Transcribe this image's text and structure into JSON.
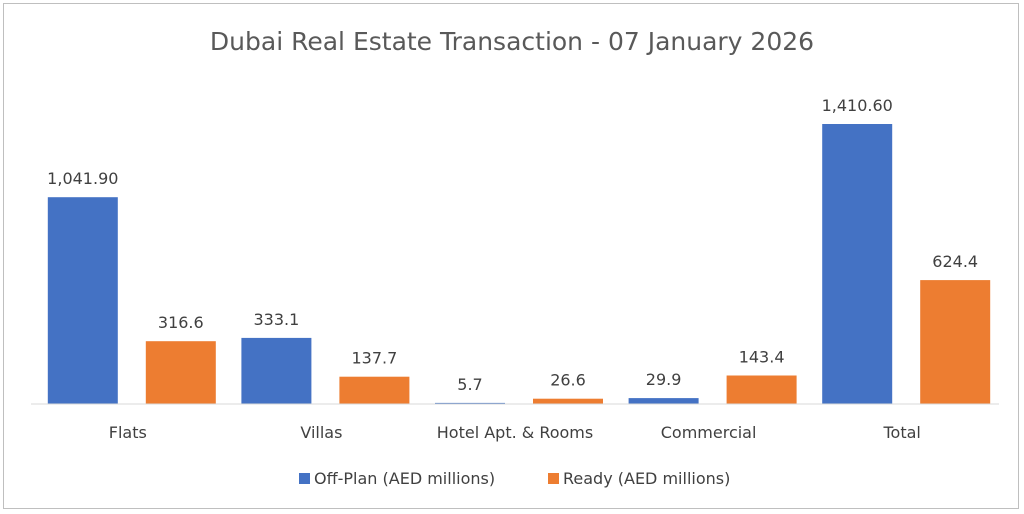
{
  "chart_data": {
    "type": "bar",
    "title": "Dubai Real Estate Transaction - 07 January 2026",
    "categories": [
      "Flats",
      "Villas",
      "Hotel Apt. & Rooms",
      "Commercial",
      "Total"
    ],
    "series": [
      {
        "name": "Off-Plan (AED millions)",
        "values": [
          1041.9,
          333.1,
          5.7,
          29.9,
          1410.6
        ],
        "labels": [
          "1,041.90",
          "333.1",
          "5.7",
          "29.9",
          "1,410.60"
        ],
        "color": "#4472C4"
      },
      {
        "name": "Ready (AED millions)",
        "values": [
          316.6,
          137.7,
          26.6,
          143.4,
          624.4
        ],
        "labels": [
          "316.6",
          "137.7",
          "26.6",
          "143.4",
          "624.4"
        ],
        "color": "#ED7D31"
      }
    ],
    "xlabel": "",
    "ylabel": "",
    "ylim": [
      0,
      1600
    ],
    "grid": false,
    "y_axis_visible": false,
    "legend_position": "bottom"
  }
}
